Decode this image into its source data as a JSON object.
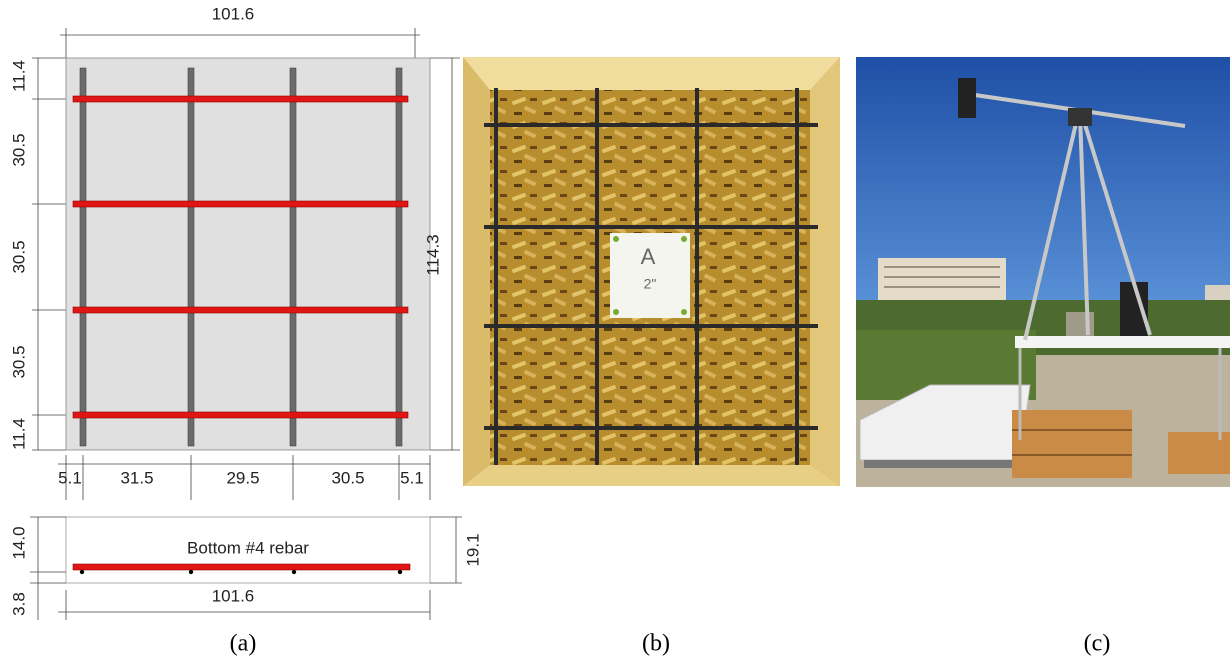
{
  "panel_a": {
    "plan": {
      "top_width": "101.6",
      "left_dims": [
        "11.4",
        "30.5",
        "30.5",
        "30.5",
        "11.4"
      ],
      "right_height": "114.3",
      "bottom_dims": [
        "5.1",
        "31.5",
        "29.5",
        "30.5",
        "5.1"
      ]
    },
    "section": {
      "label": "Bottom #4 rebar",
      "left_dims": [
        "14.0",
        "3.8"
      ],
      "right_dim": "19.1",
      "bottom_width": "101.6"
    },
    "caption": "(a)"
  },
  "panel_b": {
    "sign": [
      "A",
      "2\""
    ],
    "caption": "(b)"
  },
  "panel_c": {
    "caption": "(c)"
  }
}
